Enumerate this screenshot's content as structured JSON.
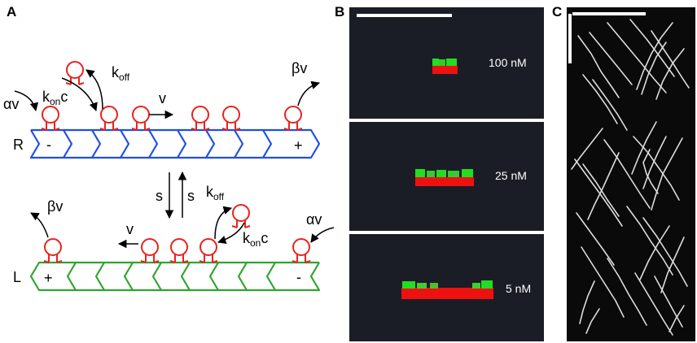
{
  "panels": {
    "a": {
      "label": "A",
      "upper_filament": {
        "label": "R",
        "minus_sign": "-",
        "plus_sign": "+"
      },
      "lower_filament": {
        "label": "L",
        "plus_sign": "+",
        "minus_sign": "-"
      },
      "rates": {
        "attach_upper": "αv",
        "attach_lower": "αv",
        "detach_upper": "βv",
        "detach_lower": "βv",
        "k_base": "k",
        "on_sub": "on",
        "off_sub": "off",
        "conc": "c",
        "velocity_upper": "v",
        "velocity_lower": "v",
        "switch_down": "s",
        "switch_up": "s"
      }
    },
    "b": {
      "label": "B",
      "concentrations": [
        "100 nM",
        "25 nM",
        "5 nM"
      ]
    },
    "c": {
      "label": "C"
    }
  },
  "colors": {
    "motor": "#e8231f",
    "upper_filament": "#1f50e0",
    "lower_filament": "#2ea62e",
    "micrograph_bg": "#1b1d26",
    "kymograph_bg": "#0a0a0a",
    "green_signal": "#22dd22",
    "red_signal": "#ee1111"
  }
}
